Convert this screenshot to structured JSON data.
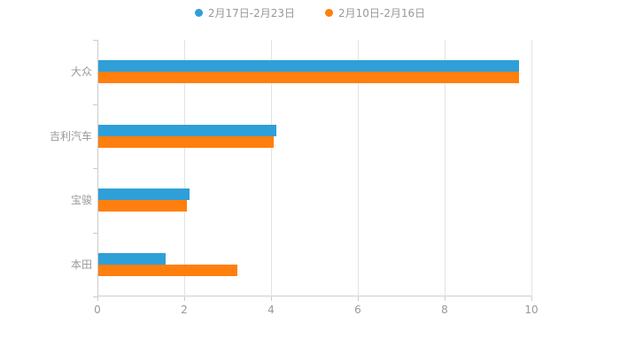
{
  "chart_data": {
    "type": "bar",
    "orientation": "horizontal",
    "title": "",
    "categories": [
      "大众",
      "吉利汽车",
      "宝骏",
      "本田"
    ],
    "series": [
      {
        "name": "2月17日-2月23日",
        "color": "#2f9fd8",
        "values": [
          9.7,
          4.1,
          2.1,
          1.55
        ]
      },
      {
        "name": "2月10日-2月16日",
        "color": "#ff7f0e",
        "values": [
          9.7,
          4.05,
          2.05,
          3.2
        ]
      }
    ],
    "xlim": [
      0,
      10
    ],
    "x_ticks": [
      0,
      2,
      4,
      6,
      8,
      10
    ],
    "xlabel": "",
    "ylabel": "",
    "legend_position": "top",
    "grid": true,
    "colors": {
      "axis": "#cccccc",
      "gridline": "#e3e3e3",
      "tick_label": "#999999",
      "category_label": "#999999",
      "background": "#ffffff"
    }
  }
}
